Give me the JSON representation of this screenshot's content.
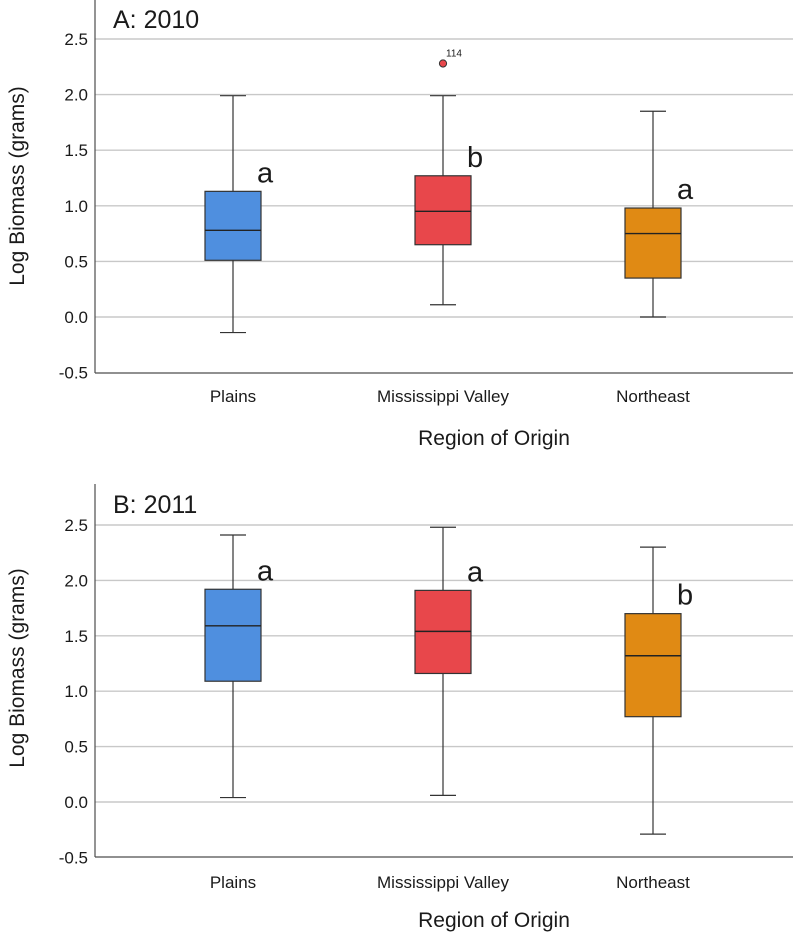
{
  "chart_data": [
    {
      "type": "box",
      "title": "A: 2010",
      "xlabel": "Region of Origin",
      "ylabel": "Log Biomass (grams)",
      "ylim": [
        -0.5,
        2.8
      ],
      "yticks": [
        -0.5,
        0.0,
        0.5,
        1.0,
        1.5,
        2.0,
        2.5
      ],
      "ytick_labels": [
        "-0.5",
        "0.0",
        "0.5",
        "1.0",
        "1.5",
        "2.0",
        "2.5"
      ],
      "grid": true,
      "categories": [
        "Plains",
        "Mississippi Valley",
        "Northeast"
      ],
      "boxes": [
        {
          "category": "Plains",
          "min": -0.14,
          "q1": 0.51,
          "median": 0.78,
          "q3": 1.13,
          "max": 1.99,
          "letter": "a",
          "color": "#4f8fdf",
          "outliers": []
        },
        {
          "category": "Mississippi Valley",
          "min": 0.11,
          "q1": 0.65,
          "median": 0.95,
          "q3": 1.27,
          "max": 1.99,
          "letter": "b",
          "color": "#e8474b",
          "outliers": [
            {
              "value": 2.28,
              "label": "114"
            }
          ]
        },
        {
          "category": "Northeast",
          "min": 0.0,
          "q1": 0.35,
          "median": 0.75,
          "q3": 0.98,
          "max": 1.85,
          "letter": "a",
          "color": "#e08a14",
          "outliers": []
        }
      ]
    },
    {
      "type": "box",
      "title": "B: 2011",
      "xlabel": "Region of Origin",
      "ylabel": "Log Biomass (grams)",
      "ylim": [
        -0.5,
        2.85
      ],
      "yticks": [
        -0.5,
        0.0,
        0.5,
        1.0,
        1.5,
        2.0,
        2.5
      ],
      "ytick_labels": [
        "-0.5",
        "0.0",
        "0.5",
        "1.0",
        "1.5",
        "2.0",
        "2.5"
      ],
      "grid": true,
      "categories": [
        "Plains",
        "Mississippi Valley",
        "Northeast"
      ],
      "boxes": [
        {
          "category": "Plains",
          "min": 0.04,
          "q1": 1.09,
          "median": 1.59,
          "q3": 1.92,
          "max": 2.41,
          "letter": "a",
          "color": "#4f8fdf",
          "outliers": []
        },
        {
          "category": "Mississippi Valley",
          "min": 0.06,
          "q1": 1.16,
          "median": 1.54,
          "q3": 1.91,
          "max": 2.48,
          "letter": "a",
          "color": "#e8474b",
          "outliers": []
        },
        {
          "category": "Northeast",
          "min": -0.29,
          "q1": 0.77,
          "median": 1.32,
          "q3": 1.7,
          "max": 2.3,
          "letter": "b",
          "color": "#e08a14",
          "outliers": []
        }
      ]
    }
  ]
}
